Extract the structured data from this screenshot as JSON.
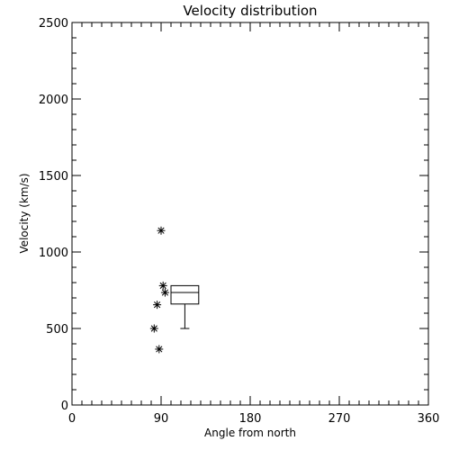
{
  "chart_data": {
    "type": "scatter",
    "title": "Velocity distribution",
    "xlabel": "Angle from north",
    "ylabel": "Velocity (km/s)",
    "xlim": [
      0,
      360
    ],
    "ylim": [
      0,
      2500
    ],
    "xticks": [
      0,
      90,
      180,
      270,
      360
    ],
    "yticks": [
      0,
      500,
      1000,
      1500,
      2000,
      2500
    ],
    "x_minor_step": 10,
    "y_minor_step": 100,
    "grid": false,
    "marker": "asterisk",
    "points": [
      {
        "x": 90,
        "y": 1140
      },
      {
        "x": 92,
        "y": 780
      },
      {
        "x": 94,
        "y": 735
      },
      {
        "x": 86,
        "y": 655
      },
      {
        "x": 83,
        "y": 500
      },
      {
        "x": 88,
        "y": 365
      }
    ],
    "boxplot": {
      "x_left": 100,
      "x_right": 128,
      "q1": 660,
      "median": 735,
      "q3": 780,
      "whisker_low": 500,
      "whisker_high": 780
    }
  }
}
